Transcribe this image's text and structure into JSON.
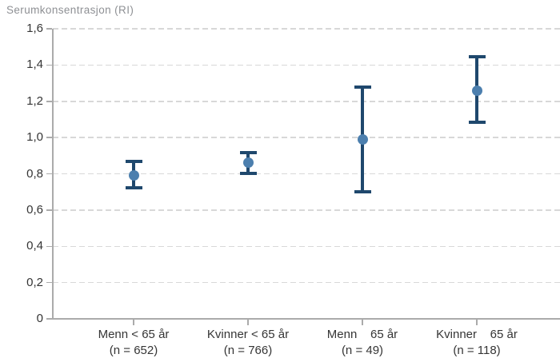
{
  "title": "Serumkonsentrasjon (RI)",
  "chart_data": {
    "type": "scatter",
    "subtype": "point-estimates-with-error-bars",
    "title": "Serumkonsentrasjon (RI)",
    "ylabel": "Serumkonsentrasjon (RI)",
    "xlabel": "",
    "ylim": [
      0,
      1.6
    ],
    "ytick_labels": [
      "0",
      "0,2",
      "0,4",
      "0,6",
      "0,8",
      "1,0",
      "1,2",
      "1,4",
      "1,6"
    ],
    "grid": "horizontal-dashed",
    "legend": "none",
    "groups": [
      {
        "label": "Menn < 65 år",
        "n_label": "(n = 652)",
        "n": 652,
        "mean": 0.79,
        "ci_low": 0.72,
        "ci_high": 0.87
      },
      {
        "label": "Kvinner < 65 år",
        "n_label": "(n = 766)",
        "n": 766,
        "mean": 0.86,
        "ci_low": 0.8,
        "ci_high": 0.92
      },
      {
        "label": "Menn    65 år",
        "n_label": "(n = 49)",
        "n": 49,
        "mean": 0.99,
        "ci_low": 0.7,
        "ci_high": 1.28
      },
      {
        "label": "Kvinner    65 år",
        "n_label": "(n = 118)",
        "n": 118,
        "mean": 1.26,
        "ci_low": 1.08,
        "ci_high": 1.45
      }
    ],
    "colors": {
      "error_bar": "#1f486d",
      "marker": "#4c7fae",
      "grid": "#d8d8d8",
      "axis": "#ababab",
      "title_text": "#8e9094",
      "label_text": "#353535",
      "background": "#ffffff"
    }
  }
}
